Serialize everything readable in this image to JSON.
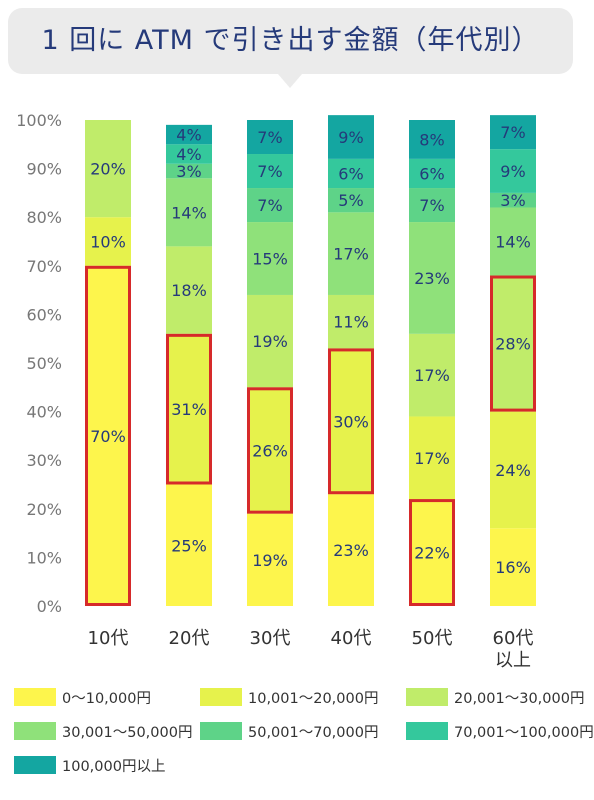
{
  "title": "1 回に ATM で引き出す金額（年代別）",
  "chart_data": {
    "type": "bar",
    "stacked": true,
    "orientation": "vertical",
    "ylim": [
      0,
      100
    ],
    "y_ticks": [
      "0%",
      "10%",
      "20%",
      "30%",
      "40%",
      "50%",
      "60%",
      "70%",
      "80%",
      "90%",
      "100%"
    ],
    "categories": [
      "10代",
      "20代",
      "30代",
      "40代",
      "50代",
      "60代\n以上"
    ],
    "series": [
      {
        "name": "0〜10,000円",
        "color": "#fdf54c",
        "values": [
          70,
          25,
          19,
          23,
          22,
          16
        ],
        "labels": [
          "",
          "25%",
          "19%",
          "23%",
          "22%",
          "16%"
        ]
      },
      {
        "name": "10,001〜20,000円",
        "color": "#e6f24c",
        "values": [
          10,
          31,
          26,
          30,
          17,
          24
        ],
        "labels": [
          "10%",
          "31%",
          "26%",
          "30%",
          "17%",
          "24%"
        ]
      },
      {
        "name": "20,001〜30,000円",
        "color": "#c0ec6a",
        "values": [
          20,
          18,
          19,
          11,
          17,
          28
        ],
        "labels": [
          "20%",
          "18%",
          "19%",
          "11%",
          "17%",
          "28%"
        ]
      },
      {
        "name": "30,001〜50,000円",
        "color": "#8fe17a",
        "values": [
          0,
          14,
          15,
          17,
          23,
          14
        ],
        "labels": [
          "",
          "14%",
          "15%",
          "17%",
          "23%",
          "14%"
        ]
      },
      {
        "name": "50,001〜70,000円",
        "color": "#5ed388",
        "values": [
          0,
          3,
          7,
          5,
          7,
          3
        ],
        "labels": [
          "",
          "3%",
          "7%",
          "5%",
          "7%",
          "3%"
        ]
      },
      {
        "name": "70,001〜100,000円",
        "color": "#34c89c",
        "values": [
          0,
          4,
          7,
          6,
          6,
          9
        ],
        "labels": [
          "",
          "4%",
          "7%",
          "6%",
          "6%",
          "9%"
        ]
      },
      {
        "name": "100,000円以上",
        "color": "#14a6a1",
        "values": [
          0,
          4,
          7,
          9,
          8,
          7
        ],
        "labels": [
          "",
          "4%",
          "7%",
          "9%",
          "8%",
          "7%"
        ]
      }
    ],
    "first_bar_label": "70%",
    "highlighted": [
      {
        "category": "10代",
        "series": "0〜10,000円"
      },
      {
        "category": "20代",
        "series": "10,001〜20,000円"
      },
      {
        "category": "30代",
        "series": "10,001〜20,000円"
      },
      {
        "category": "40代",
        "series": "10,001〜20,000円"
      },
      {
        "category": "50代",
        "series": "0〜10,000円"
      },
      {
        "category": "60代\n以上",
        "series": "20,001〜30,000円"
      }
    ],
    "highlight_color": "#d62a2a",
    "label_color": "#253a7a",
    "grid": false,
    "legend_position": "bottom"
  }
}
